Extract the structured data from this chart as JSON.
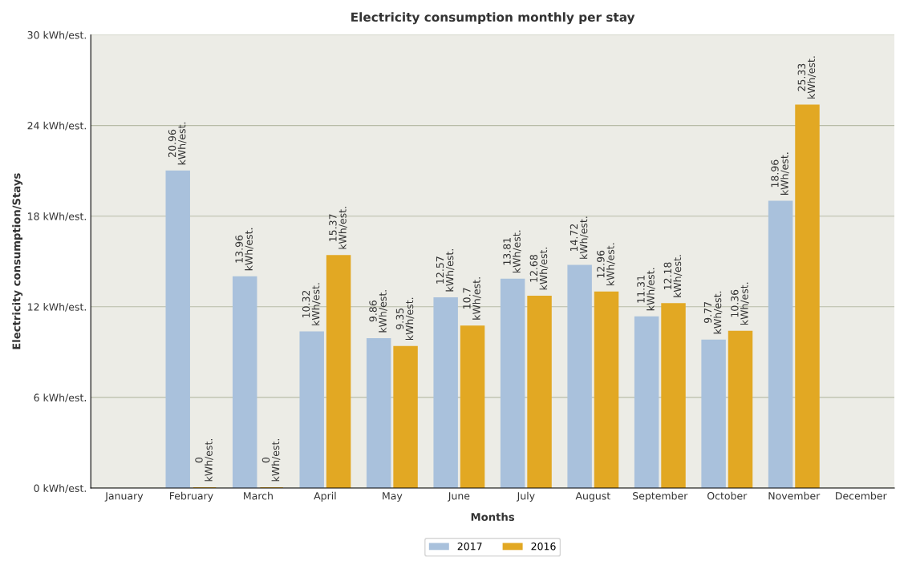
{
  "chart_data": {
    "type": "bar",
    "title": "Electricity consumption monthly per stay",
    "xlabel": "Months",
    "ylabel": "Electricity consumption/Stays",
    "categories": [
      "January",
      "February",
      "March",
      "April",
      "May",
      "June",
      "July",
      "August",
      "September",
      "October",
      "November",
      "December"
    ],
    "series": [
      {
        "name": "2017",
        "color": "#a9c1dc",
        "values": [
          null,
          20.96,
          13.96,
          10.32,
          9.86,
          12.57,
          13.81,
          14.72,
          11.31,
          9.77,
          18.96,
          null
        ],
        "value_labels": [
          null,
          "20.96\nkWh/est.",
          "13.96\nkWh/est.",
          "10.32\nkWh/est.",
          "9.86\nkWh/est.",
          "12.57\nkWh/est.",
          "13.81\nkWh/est.",
          "14.72\nkWh/est.",
          "11.31\nkWh/est.",
          "9.77\nkWh/est.",
          "18.96\nkWh/est.",
          null
        ]
      },
      {
        "name": "2016",
        "color": "#e2a823",
        "values": [
          null,
          0,
          0,
          15.37,
          9.35,
          10.7,
          12.68,
          12.96,
          12.18,
          10.36,
          25.33,
          null
        ],
        "value_labels": [
          null,
          "0\nkWh/est.",
          "0\nkWh/est.",
          "15.37\nkWh/est.",
          "9.35\nkWh/est.",
          "10.7\nkWh/est.",
          "12.68\nkWh/est.",
          "12.96\nkWh/est.",
          "12.18\nkWh/est.",
          "10.36\nkWh/est.",
          "25.33\nkWh/est.",
          null
        ]
      }
    ],
    "ylim": [
      0,
      30
    ],
    "yticks": [
      {
        "value": 0,
        "label": "0 kWh/est."
      },
      {
        "value": 6,
        "label": "6 kWh/est."
      },
      {
        "value": 12,
        "label": "12 kWh/est."
      },
      {
        "value": 18,
        "label": "18 kWh/est."
      },
      {
        "value": 24,
        "label": "24 kWh/est."
      },
      {
        "value": 30,
        "label": "30 kWh/est."
      }
    ],
    "grid": "y",
    "legend": "bottom"
  }
}
